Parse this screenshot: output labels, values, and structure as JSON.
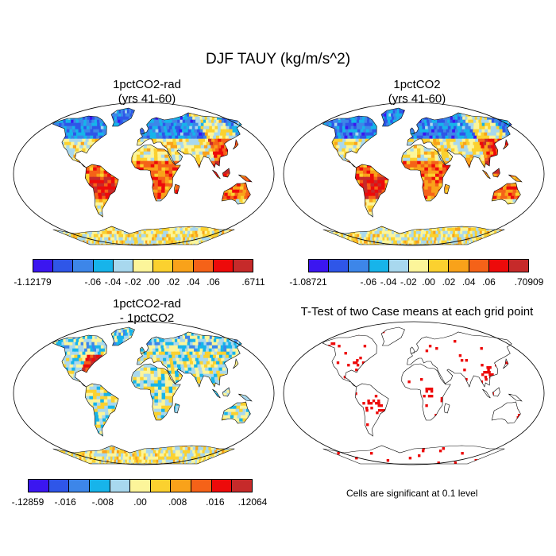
{
  "title": "DJF TAUY (kg/m/s^2)",
  "panels": [
    {
      "title_line1": "1pctCO2-rad",
      "title_line2": "(yrs 41-60)"
    },
    {
      "title_line1": "1pctCO2",
      "title_line2": "(yrs 41-60)"
    },
    {
      "title_line1": "1pctCO2-rad",
      "title_line2": "- 1pctCO2"
    },
    {
      "title_line1": "T-Test of two Case means at each grid point",
      "title_line2": ""
    }
  ],
  "colorbar_main": {
    "colors": [
      "#3b16f0",
      "#2f56e8",
      "#3d86e9",
      "#17b4ea",
      "#a8d8ee",
      "#fcf59a",
      "#fbd12f",
      "#f9a21a",
      "#f56218",
      "#ed0a0a",
      "#c62a2a"
    ],
    "labels_left": [
      "-1.12179",
      "-.06",
      "-.04",
      "-.02",
      ".00",
      ".02",
      ".04",
      ".06",
      ".6711"
    ],
    "labels_right": [
      "-1.08721",
      "-.06",
      "-.04",
      "-.02",
      ".00",
      ".02",
      ".04",
      ".06",
      ".70909"
    ]
  },
  "colorbar_diff": {
    "colors": [
      "#3b16f0",
      "#2f56e8",
      "#3d86e9",
      "#17b4ea",
      "#a8d8ee",
      "#fcf59a",
      "#fbd12f",
      "#f9a21a",
      "#f56218",
      "#ed0a0a",
      "#c62a2a"
    ],
    "labels": [
      "-.12859",
      "-.016",
      "-.008",
      ".00",
      ".008",
      ".016",
      ".12064"
    ]
  },
  "note": "Cells are significant at 0.1 level"
}
